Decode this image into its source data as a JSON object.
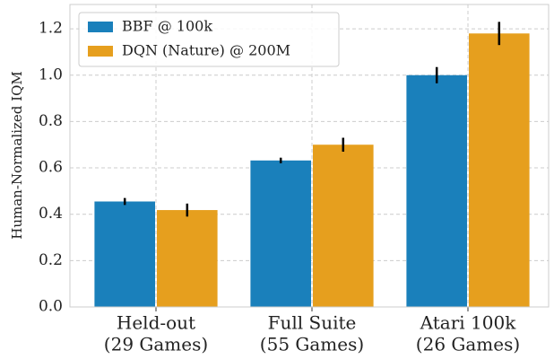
{
  "chart_data": {
    "type": "bar",
    "ylabel": "Human-Normalized IQM",
    "categories": [
      [
        "Held-out",
        "(29 Games)"
      ],
      [
        "Full Suite",
        "(55 Games)"
      ],
      [
        "Atari 100k",
        "(26 Games)"
      ]
    ],
    "series": [
      {
        "name": "BBF @ 100k",
        "color": "#1a80bb",
        "values": [
          0.455,
          0.632,
          1.0
        ],
        "errors": [
          0.015,
          0.012,
          0.035
        ]
      },
      {
        "name": "DQN (Nature) @ 200M",
        "color": "#e69f1e",
        "values": [
          0.418,
          0.7,
          1.18
        ],
        "errors": [
          0.028,
          0.03,
          0.05
        ]
      }
    ],
    "ylim": [
      0,
      1.305
    ],
    "yticks": [
      {
        "value": 0,
        "label": "0.0"
      },
      0.2,
      0.4,
      0.6,
      0.8,
      {
        "value": 1,
        "label": "1.0"
      },
      1.2
    ],
    "grid": true,
    "legend": "upper left"
  }
}
